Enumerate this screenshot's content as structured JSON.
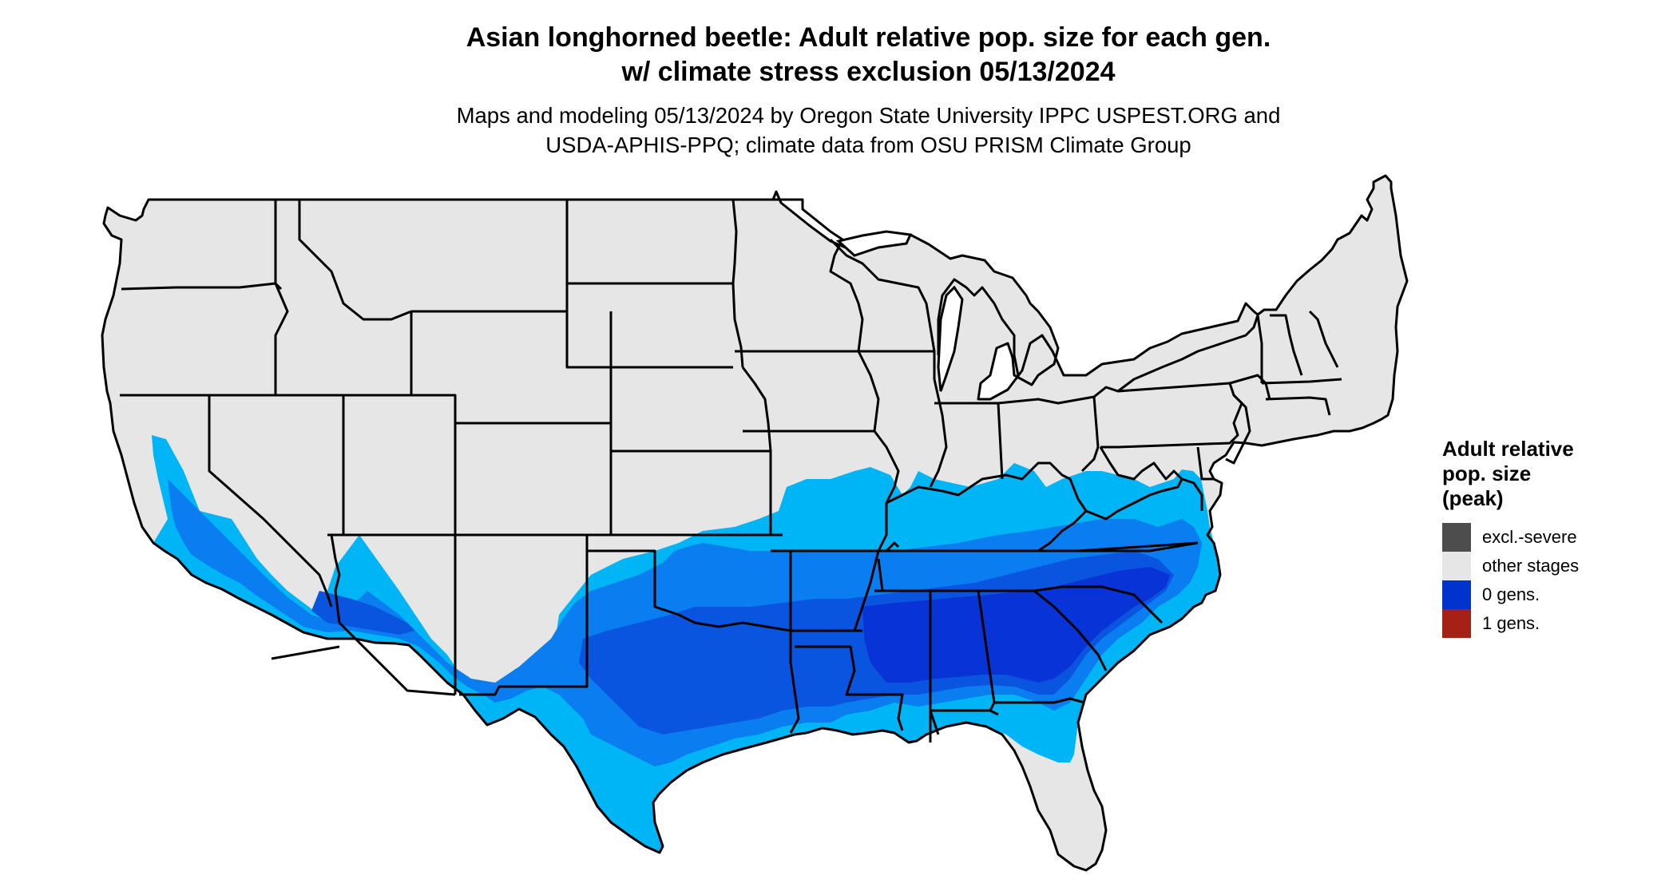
{
  "title": {
    "line1": "Asian longhorned beetle: Adult relative pop. size for each gen.",
    "line2": "w/ climate stress exclusion 05/13/2024"
  },
  "subtitle": {
    "line1": "Maps and modeling 05/13/2024 by Oregon State University IPPC USPEST.ORG and",
    "line2": "USDA-APHIS-PPQ; climate data from OSU PRISM Climate Group"
  },
  "legend": {
    "title_line1": "Adult relative",
    "title_line2": "pop. size",
    "title_line3": "(peak)",
    "items": [
      {
        "label": "excl.-severe",
        "color": "#4d4d4d"
      },
      {
        "label": "other stages",
        "color": "#e6e6e6"
      },
      {
        "label": "0 gens.",
        "color": "#0033cc"
      },
      {
        "label": "1 gens.",
        "color": "#a52015"
      }
    ]
  },
  "map_colors": {
    "land": "#e6e6e6",
    "border": "#000000",
    "zone_light": "#00b5f5",
    "zone_medium": "#0a7ef0",
    "zone_dark": "#0a55e0",
    "zone_darkest": "#0833d6"
  }
}
